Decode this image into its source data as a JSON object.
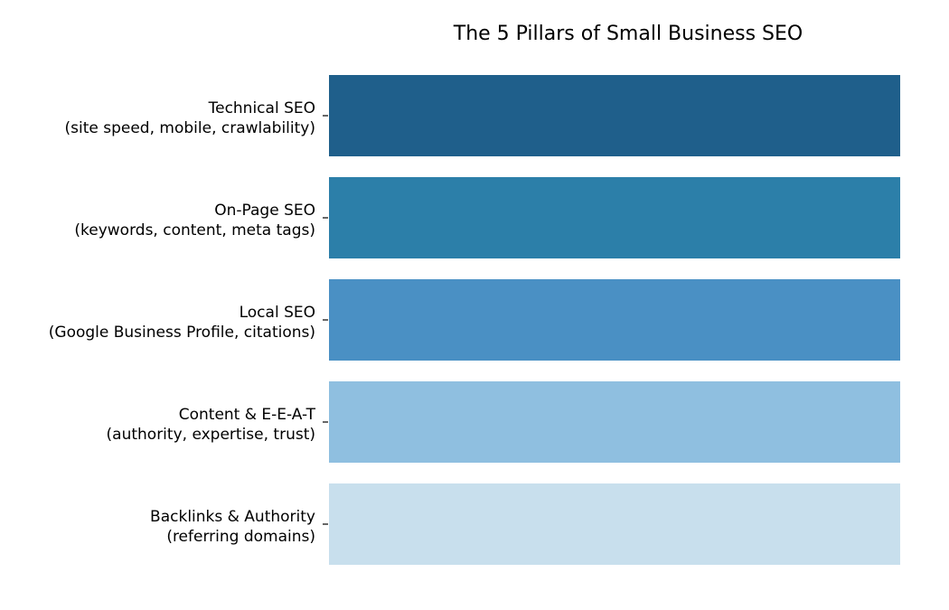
{
  "chart_data": {
    "type": "bar",
    "orientation": "horizontal",
    "title": "The 5 Pillars of Small Business SEO",
    "xlabel": "",
    "ylabel": "",
    "grid": false,
    "axes_visible": false,
    "xlim": [
      0,
      1
    ],
    "categories": [
      {
        "line1": "Technical SEO",
        "line2": "(site speed, mobile, crawlability)"
      },
      {
        "line1": "On-Page SEO",
        "line2": "(keywords, content, meta tags)"
      },
      {
        "line1": "Local SEO",
        "line2": "(Google Business Profile, citations)"
      },
      {
        "line1": "Content & E-E-A-T",
        "line2": "(authority, expertise, trust)"
      },
      {
        "line1": "Backlinks & Authority",
        "line2": "(referring domains)"
      }
    ],
    "values": [
      1,
      1,
      1,
      1,
      1
    ],
    "colors": [
      "#1f5f8b",
      "#2c7fa9",
      "#4a90c4",
      "#8fbfe0",
      "#c8dfed"
    ]
  }
}
